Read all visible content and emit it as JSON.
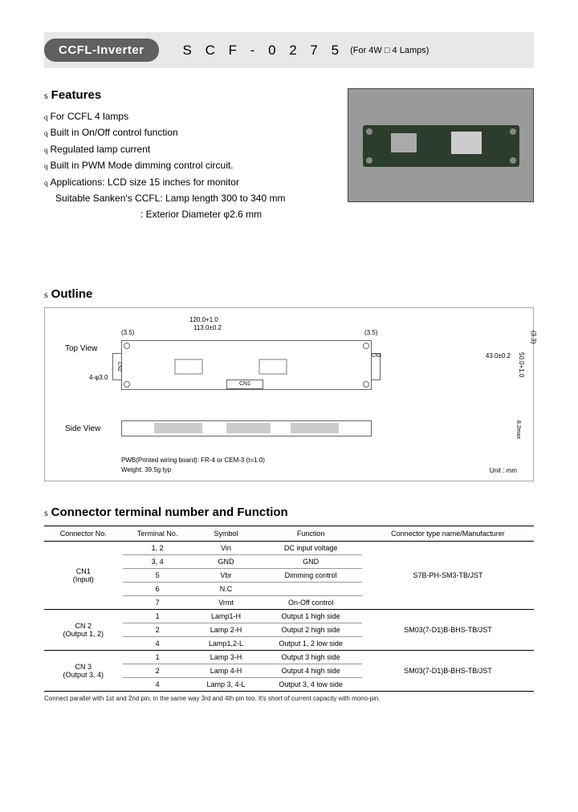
{
  "header": {
    "badge": "CCFL-Inverter",
    "code": "S C F - 0 2 7 5",
    "sub": "(For 4W □ 4 Lamps)"
  },
  "features": {
    "prefix": "s",
    "title": "Features",
    "item_prefix": "q",
    "items": [
      "For CCFL 4 lamps",
      "Built in On/Off control function",
      "Regulated lamp current",
      "Built in PWM Mode dimming control circuit.",
      "Applications: LCD size 15 inches for monitor"
    ],
    "sub_items": [
      "Suitable Sanken's CCFL:  Lamp length 300 to 340 mm",
      ":  Exterior Diameter φ2.6 mm"
    ]
  },
  "outline": {
    "prefix": "s",
    "title": "Outline",
    "top_view": "Top View",
    "side_view": "Side View",
    "dim_120": "120.0+1.0",
    "dim_113": "113.0±0.2",
    "dim_35": "(3.5)",
    "dim_33": "(3.3)",
    "dim_430": "43.0±0.2",
    "dim_500": "50.0+1.0",
    "dim_4phi": "4-φ3.0",
    "dim_82max": "8.2max",
    "cn1": "CN1",
    "cn2": "CN2",
    "cn3": "CN3",
    "pwb_note": "PWB(Printed wiring board): FR-4 or CEM-3 (t=1.0)",
    "weight_note": "Weight: 39.5g typ",
    "unit": "Unit : mm"
  },
  "connector": {
    "prefix": "s",
    "title": "Connector terminal number and Function",
    "headers": [
      "Connector No.",
      "Terminal No.",
      "Symbol",
      "Function",
      "Connector type name/Manufacturer"
    ],
    "rows": [
      {
        "conn": "CN1",
        "conn_sub": "(Input)",
        "rowspan": 5,
        "term": "1, 2",
        "sym": "Vin",
        "func": "DC input voltage",
        "type": "S7B-PH-SM3-TB/JST"
      },
      {
        "term": "3, 4",
        "sym": "GND",
        "func": "GND"
      },
      {
        "term": "5",
        "sym": "Vbr",
        "func": "Dimming control"
      },
      {
        "term": "6",
        "sym": "N.C",
        "func": ""
      },
      {
        "term": "7",
        "sym": "Vrmt",
        "func": "On-Off control"
      },
      {
        "conn": "CN 2",
        "conn_sub": "(Output 1, 2)",
        "rowspan": 3,
        "term": "1",
        "sym": "Lamp1-H",
        "func": "Output 1 high side",
        "type": "SM03(7-D1)B-BHS-TB/JST"
      },
      {
        "term": "2",
        "sym": "Lamp 2-H",
        "func": "Output 2 high side"
      },
      {
        "term": "4",
        "sym": "Lamp1,2-L",
        "func": "Output 1, 2 low side"
      },
      {
        "conn": "CN 3",
        "conn_sub": "(Output 3, 4)",
        "rowspan": 3,
        "term": "1",
        "sym": "Lamp 3-H",
        "func": "Output 3 high side",
        "type": "SM03(7-D1)B-BHS-TB/JST"
      },
      {
        "term": "2",
        "sym": "Lamp 4-H",
        "func": "Output 4 high side"
      },
      {
        "term": "4",
        "sym": "Lamp 3, 4-L",
        "func": "Output 3, 4 low side"
      }
    ],
    "footnote": "Connect parallel with 1st and 2nd pin, in the same way 3rd and 4th pin too. It's short of current capacity with mono-pin."
  },
  "colors": {
    "badge_bg": "#606060",
    "header_bg": "#e8e8e8",
    "pcb_bg": "#2d3d2d",
    "image_bg": "#9a9a9a"
  }
}
